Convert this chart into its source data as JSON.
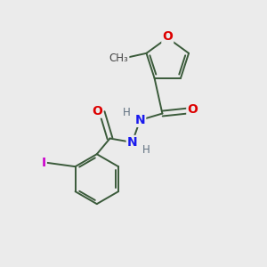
{
  "bg_color": "#ebebeb",
  "bond_color": "#3a5a3a",
  "bond_width": 1.4,
  "atom_colors": {
    "O": "#dd0000",
    "N": "#1a1aee",
    "I": "#cc00cc",
    "H": "#607080"
  },
  "font_size_atoms": 10,
  "font_size_small": 8.5
}
